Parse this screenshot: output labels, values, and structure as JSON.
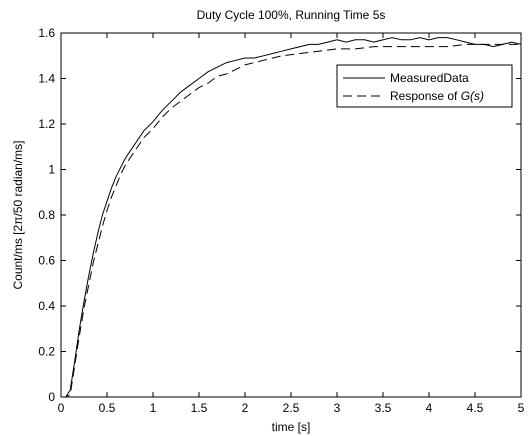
{
  "chart_data": {
    "type": "line",
    "title": "Duty Cycle 100%, Running Time 5s",
    "xlabel": "time [s]",
    "ylabel": "Count/ms [2π/50 radian/ms]",
    "xlim": [
      0,
      5
    ],
    "ylim": [
      0,
      1.6
    ],
    "xticks": [
      0,
      0.5,
      1,
      1.5,
      2,
      2.5,
      3,
      3.5,
      4,
      4.5,
      5
    ],
    "xtick_labels": [
      "0",
      "0.5",
      "1",
      "1.5",
      "2",
      "2.5",
      "3",
      "3.5",
      "4",
      "4.5",
      "5"
    ],
    "yticks": [
      0,
      0.2,
      0.4,
      0.6,
      0.8,
      1,
      1.2,
      1.4,
      1.6
    ],
    "ytick_labels": [
      "0",
      "0.2",
      "0.4",
      "0.6",
      "0.8",
      "1",
      "1.2",
      "1.4",
      "1.6"
    ],
    "grid": false,
    "legend_position": "top-right",
    "series": [
      {
        "name": "Measured Data",
        "legend_label": "MeasuredData",
        "style": "solid",
        "color": "#000000",
        "x": [
          0,
          0.05,
          0.1,
          0.15,
          0.2,
          0.25,
          0.3,
          0.35,
          0.4,
          0.45,
          0.5,
          0.55,
          0.6,
          0.65,
          0.7,
          0.75,
          0.8,
          0.85,
          0.9,
          0.95,
          1.0,
          1.1,
          1.2,
          1.3,
          1.4,
          1.5,
          1.6,
          1.7,
          1.8,
          1.9,
          2.0,
          2.1,
          2.2,
          2.3,
          2.4,
          2.5,
          2.6,
          2.7,
          2.8,
          2.9,
          3.0,
          3.1,
          3.2,
          3.3,
          3.4,
          3.5,
          3.6,
          3.7,
          3.8,
          3.9,
          4.0,
          4.1,
          4.2,
          4.3,
          4.4,
          4.5,
          4.6,
          4.7,
          4.8,
          4.9,
          5.0
        ],
        "y": [
          0,
          0,
          0.03,
          0.16,
          0.3,
          0.42,
          0.53,
          0.63,
          0.72,
          0.8,
          0.86,
          0.92,
          0.97,
          1.01,
          1.05,
          1.08,
          1.11,
          1.14,
          1.17,
          1.19,
          1.21,
          1.26,
          1.3,
          1.34,
          1.37,
          1.4,
          1.43,
          1.45,
          1.47,
          1.48,
          1.49,
          1.49,
          1.5,
          1.51,
          1.52,
          1.53,
          1.54,
          1.55,
          1.55,
          1.56,
          1.57,
          1.56,
          1.57,
          1.57,
          1.56,
          1.57,
          1.58,
          1.57,
          1.57,
          1.58,
          1.57,
          1.58,
          1.58,
          1.57,
          1.56,
          1.55,
          1.55,
          1.54,
          1.55,
          1.56,
          1.55
        ]
      },
      {
        "name": "Response of G(s)",
        "legend_label": "Response of ",
        "legend_label_italic": "G(s)",
        "style": "dashed",
        "color": "#000000",
        "x": [
          0,
          0.05,
          0.1,
          0.15,
          0.2,
          0.25,
          0.3,
          0.35,
          0.4,
          0.45,
          0.5,
          0.55,
          0.6,
          0.65,
          0.7,
          0.75,
          0.8,
          0.85,
          0.9,
          0.95,
          1.0,
          1.1,
          1.2,
          1.3,
          1.4,
          1.5,
          1.6,
          1.7,
          1.8,
          1.9,
          2.0,
          2.2,
          2.4,
          2.6,
          2.8,
          3.0,
          3.2,
          3.4,
          3.6,
          3.8,
          4.0,
          4.2,
          4.4,
          4.6,
          4.8,
          5.0
        ],
        "y": [
          0,
          0,
          0.01,
          0.14,
          0.27,
          0.39,
          0.49,
          0.59,
          0.67,
          0.75,
          0.82,
          0.88,
          0.93,
          0.98,
          1.02,
          1.05,
          1.08,
          1.11,
          1.14,
          1.16,
          1.18,
          1.23,
          1.27,
          1.3,
          1.33,
          1.36,
          1.38,
          1.41,
          1.42,
          1.44,
          1.46,
          1.48,
          1.5,
          1.51,
          1.52,
          1.53,
          1.53,
          1.54,
          1.54,
          1.54,
          1.54,
          1.54,
          1.55,
          1.55,
          1.55,
          1.55
        ]
      }
    ]
  }
}
